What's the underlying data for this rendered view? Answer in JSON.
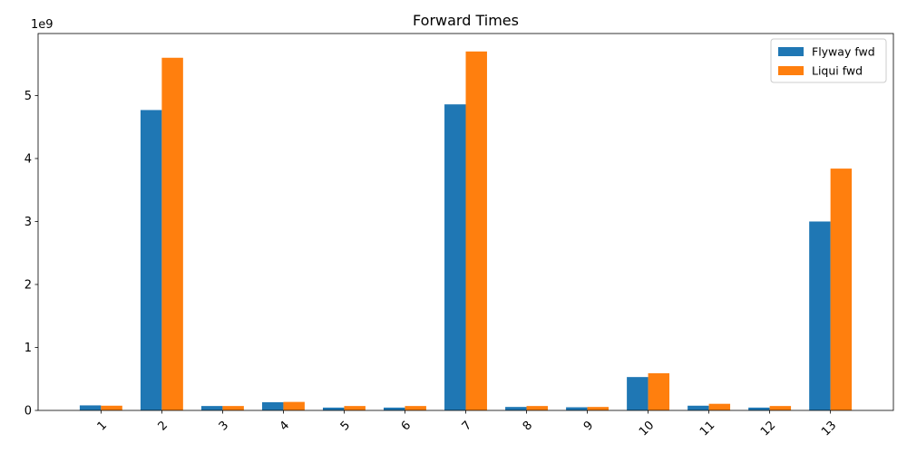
{
  "chart_data": {
    "type": "bar",
    "title": "Forward Times",
    "xlabel": "",
    "ylabel": "",
    "y_offset_label": "1e9",
    "categories": [
      "1",
      "2",
      "3",
      "4",
      "5",
      "6",
      "7",
      "8",
      "9",
      "10",
      "11",
      "12",
      "13"
    ],
    "series": [
      {
        "name": "Flyway fwd",
        "color": "#1f77b4",
        "values": [
          80000000,
          4770000000,
          70000000,
          130000000,
          45000000,
          45000000,
          4860000000,
          55000000,
          50000000,
          530000000,
          75000000,
          45000000,
          3000000000
        ]
      },
      {
        "name": "Liqui fwd",
        "color": "#ff7f0e",
        "values": [
          75000000,
          5600000000,
          70000000,
          135000000,
          70000000,
          70000000,
          5700000000,
          70000000,
          55000000,
          590000000,
          105000000,
          70000000,
          3840000000
        ]
      }
    ],
    "yticks": [
      0,
      1000000000,
      2000000000,
      3000000000,
      4000000000,
      5000000000
    ],
    "ytick_labels": [
      "0",
      "1",
      "2",
      "3",
      "4",
      "5"
    ],
    "ylim": [
      0,
      5985000000
    ],
    "grid": false,
    "legend_position": "top-right"
  }
}
